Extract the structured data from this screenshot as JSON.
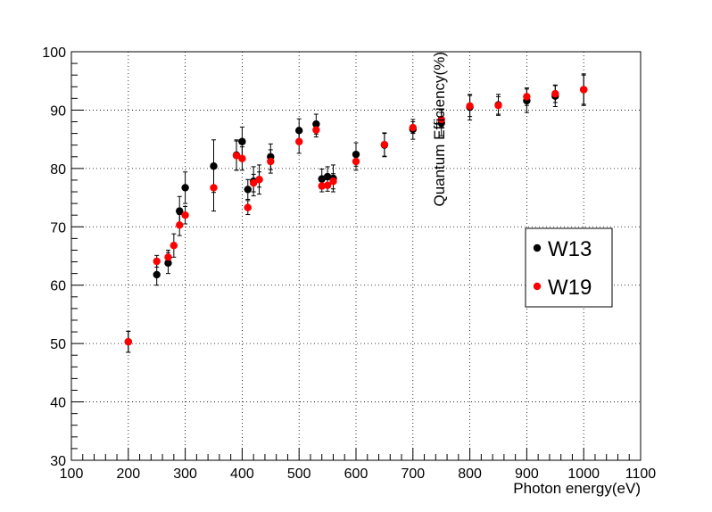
{
  "chart_data": {
    "type": "scatter",
    "title": "",
    "xlabel": "Photon energy(eV)",
    "ylabel": "Quantum Efficiency(%)",
    "xlim": [
      100,
      1100
    ],
    "ylim": [
      30,
      100
    ],
    "xticks": [
      100,
      200,
      300,
      400,
      500,
      600,
      700,
      800,
      900,
      1000,
      1100
    ],
    "yticks": [
      30,
      40,
      50,
      60,
      70,
      80,
      90,
      100
    ],
    "grid": true,
    "legend_position": "right",
    "error_bars": true,
    "series": [
      {
        "name": "W13",
        "color": "#000000",
        "points": [
          {
            "x": 200,
            "y": 50.3,
            "err": 1.8
          },
          {
            "x": 250,
            "y": 61.8,
            "err": 1.8
          },
          {
            "x": 270,
            "y": 63.8,
            "err": 1.8
          },
          {
            "x": 290,
            "y": 72.7,
            "err": 2.5
          },
          {
            "x": 300,
            "y": 76.7,
            "err": 2.7
          },
          {
            "x": 350,
            "y": 80.4,
            "err": 4.5
          },
          {
            "x": 390,
            "y": 82.3,
            "err": 2.6
          },
          {
            "x": 400,
            "y": 84.6,
            "err": 2.5
          },
          {
            "x": 410,
            "y": 76.4,
            "err": 1.7
          },
          {
            "x": 420,
            "y": 77.8,
            "err": 2.5
          },
          {
            "x": 430,
            "y": 78.1,
            "err": 2.5
          },
          {
            "x": 450,
            "y": 82.0,
            "err": 2.2
          },
          {
            "x": 500,
            "y": 86.5,
            "err": 2.0
          },
          {
            "x": 530,
            "y": 87.6,
            "err": 1.7
          },
          {
            "x": 540,
            "y": 78.2,
            "err": 1.7
          },
          {
            "x": 550,
            "y": 78.6,
            "err": 1.7
          },
          {
            "x": 560,
            "y": 78.3,
            "err": 2.3
          },
          {
            "x": 600,
            "y": 82.4,
            "err": 2.0
          },
          {
            "x": 650,
            "y": 84.0,
            "err": 2.0
          },
          {
            "x": 700,
            "y": 86.7,
            "err": 1.7
          },
          {
            "x": 750,
            "y": 87.8,
            "err": 2.2
          },
          {
            "x": 800,
            "y": 90.5,
            "err": 2.2
          },
          {
            "x": 850,
            "y": 90.9,
            "err": 1.8
          },
          {
            "x": 900,
            "y": 91.6,
            "err": 2.0
          },
          {
            "x": 950,
            "y": 92.4,
            "err": 1.8
          },
          {
            "x": 1000,
            "y": 93.5,
            "err": 2.7
          }
        ]
      },
      {
        "name": "W19",
        "color": "#ff0000",
        "points": [
          {
            "x": 200,
            "y": 50.3,
            "err": 1.8
          },
          {
            "x": 250,
            "y": 64.1,
            "err": 1.0
          },
          {
            "x": 270,
            "y": 64.8,
            "err": 1.2
          },
          {
            "x": 280,
            "y": 66.8,
            "err": 2.0
          },
          {
            "x": 290,
            "y": 70.3,
            "err": 1.8
          },
          {
            "x": 300,
            "y": 72.0,
            "err": 1.5
          },
          {
            "x": 350,
            "y": 76.7,
            "err": 4.0
          },
          {
            "x": 390,
            "y": 82.2,
            "err": 2.5
          },
          {
            "x": 400,
            "y": 81.7,
            "err": 2.0
          },
          {
            "x": 410,
            "y": 73.3,
            "err": 1.2
          },
          {
            "x": 420,
            "y": 77.5,
            "err": 1.5
          },
          {
            "x": 430,
            "y": 78.1,
            "err": 1.3
          },
          {
            "x": 450,
            "y": 81.2,
            "err": 2.0
          },
          {
            "x": 500,
            "y": 84.6,
            "err": 2.0
          },
          {
            "x": 530,
            "y": 86.6,
            "err": 1.2
          },
          {
            "x": 540,
            "y": 77.0,
            "err": 1.0
          },
          {
            "x": 550,
            "y": 77.1,
            "err": 1.0
          },
          {
            "x": 560,
            "y": 77.8,
            "err": 1.3
          },
          {
            "x": 600,
            "y": 81.2,
            "err": 1.5
          },
          {
            "x": 650,
            "y": 84.1,
            "err": 2.0
          },
          {
            "x": 700,
            "y": 87.0,
            "err": 1.0
          },
          {
            "x": 750,
            "y": 88.4,
            "err": 1.2
          },
          {
            "x": 800,
            "y": 90.7,
            "err": 1.8
          },
          {
            "x": 850,
            "y": 90.8,
            "err": 1.5
          },
          {
            "x": 900,
            "y": 92.3,
            "err": 1.5
          },
          {
            "x": 950,
            "y": 92.8,
            "err": 1.5
          },
          {
            "x": 1000,
            "y": 93.5,
            "err": 2.5
          }
        ]
      }
    ]
  }
}
